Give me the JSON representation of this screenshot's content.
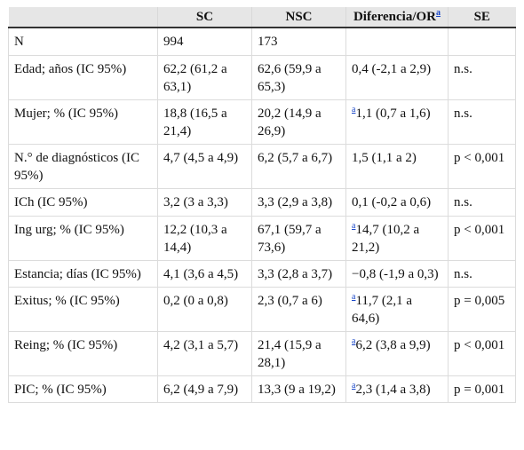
{
  "headers": [
    "",
    "SC",
    "NSC",
    "Diferencia/OR",
    "SE"
  ],
  "header_note": "a",
  "rows": [
    {
      "label": "N",
      "sc": "994",
      "nsc": "173",
      "note": "",
      "diff": "",
      "se": ""
    },
    {
      "label": "Edad; años (IC 95%)",
      "sc": "62,2 (61,2 a 63,1)",
      "nsc": "62,6 (59,9 a 65,3)",
      "note": "",
      "diff": "0,4 (-2,1 a 2,9)",
      "se": "n.s."
    },
    {
      "label": "Mujer; % (IC 95%)",
      "sc": "18,8 (16,5 a 21,4)",
      "nsc": "20,2 (14,9 a 26,9)",
      "note": "a",
      "diff": "1,1 (0,7 a 1,6)",
      "se": "n.s."
    },
    {
      "label": "N.° de diagnósticos (IC 95%)",
      "sc": "4,7 (4,5 a 4,9)",
      "nsc": "6,2 (5,7 a 6,7)",
      "note": "",
      "diff": "1,5 (1,1 a 2)",
      "se": "p < 0,001"
    },
    {
      "label": "ICh (IC 95%)",
      "sc": "3,2 (3 a 3,3)",
      "nsc": "3,3 (2,9 a 3,8)",
      "note": "",
      "diff": "0,1 (-0,2 a 0,6)",
      "se": "n.s."
    },
    {
      "label": "Ing urg; % (IC 95%)",
      "sc": "12,2 (10,3 a 14,4)",
      "nsc": "67,1 (59,7 a 73,6)",
      "note": "a",
      "diff": "14,7 (10,2 a 21,2)",
      "se": "p < 0,001"
    },
    {
      "label": "Estancia; días (IC 95%)",
      "sc": "4,1 (3,6 a 4,5)",
      "nsc": "3,3 (2,8 a 3,7)",
      "note": "",
      "diff": "−0,8 (-1,9 a 0,3)",
      "se": "n.s."
    },
    {
      "label": "Exitus; % (IC 95%)",
      "sc": "0,2 (0 a 0,8)",
      "nsc": "2,3 (0,7 a 6)",
      "note": "a",
      "diff": "11,7 (2,1 a 64,6)",
      "se": "p = 0,005"
    },
    {
      "label": "Reing; % (IC 95%)",
      "sc": "4,2 (3,1 a 5,7)",
      "nsc": "21,4 (15,9 a 28,1)",
      "note": "a",
      "diff": "6,2 (3,8 a 9,9)",
      "se": "p < 0,001"
    },
    {
      "label": "PIC; % (IC 95%)",
      "sc": "6,2 (4,9 a 7,9)",
      "nsc": "13,3 (9 a 19,2)",
      "note": "a",
      "diff": "2,3 (1,4 a 3,8)",
      "se": "p = 0,001"
    }
  ]
}
